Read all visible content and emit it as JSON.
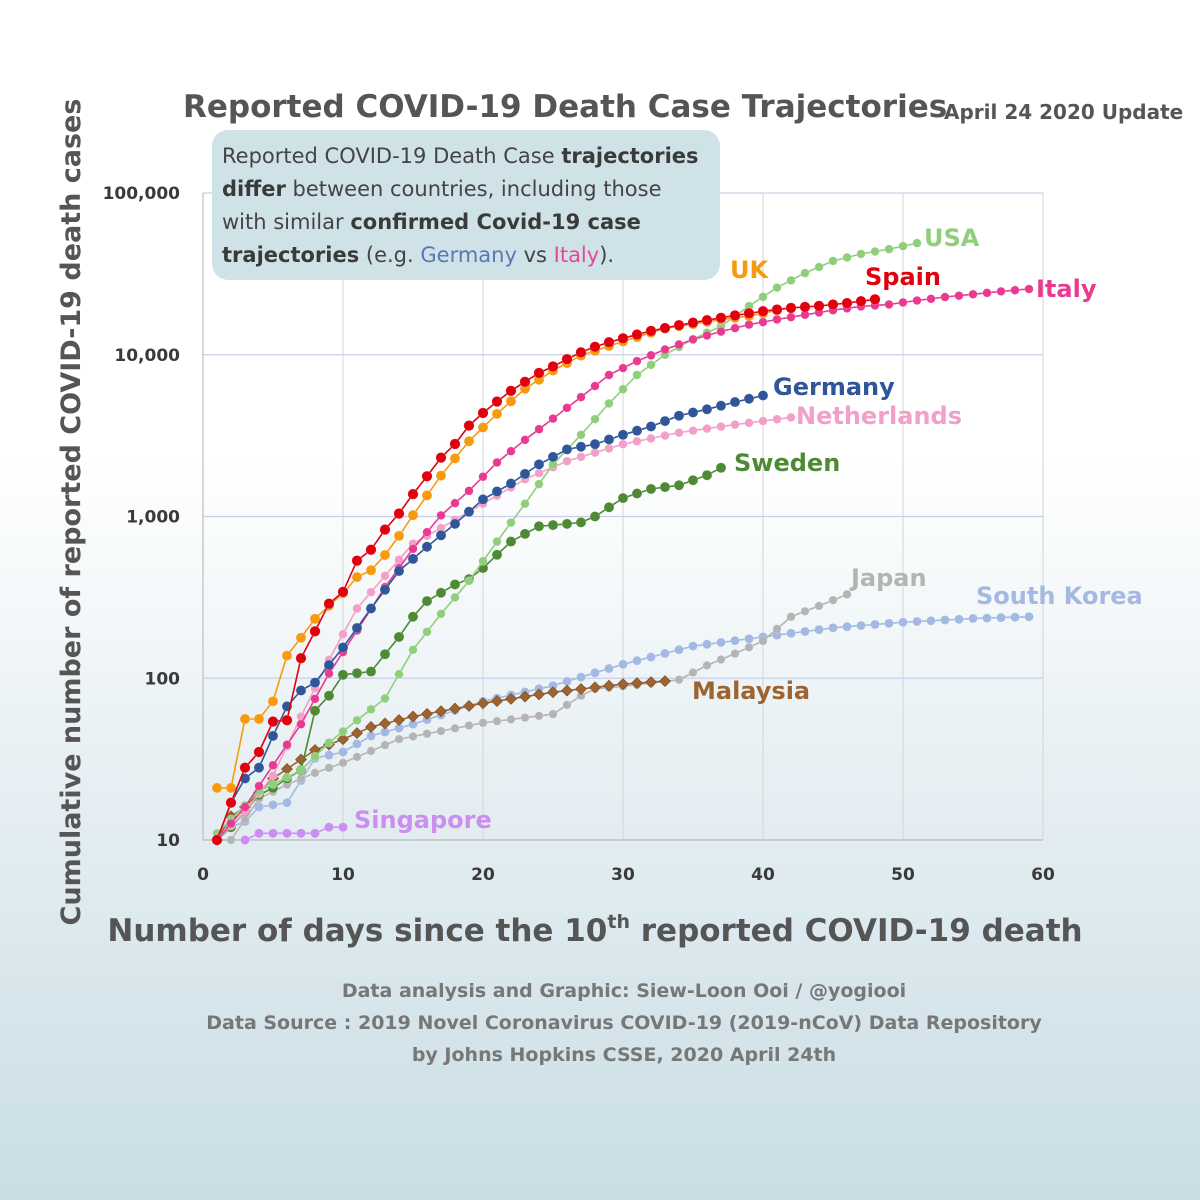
{
  "page": {
    "update_note": "April 24 2020 Update",
    "credit_line1": "Data analysis and Graphic: Siew-Loon Ooi / @yogiooi",
    "credit_line2": "Data Source : 2019 Novel Coronavirus COVID-19 (2019-nCoV) Data Repository",
    "credit_line3": "by Johns Hopkins CSSE, 2020 April 24th"
  },
  "annotation": {
    "t1": "Reported COVID-19 Death Case ",
    "t2": "trajectories",
    "t3": "differ",
    "t4": " between countries, including those with similar ",
    "t5": "confirmed Covid-19 case trajectories",
    "t6": " (e.g. ",
    "t7": "Germany",
    "t8": " vs ",
    "t9": "Italy",
    "t10": ")."
  },
  "chart_data": {
    "type": "line",
    "title": "Reported COVID-19 Death Case Trajectories",
    "xlabel_main": "Number of days since the 10",
    "xlabel_sup": "th",
    "xlabel_end": " reported COVID-19 death",
    "ylabel": "Cumulative number of reported COVID-19 death cases",
    "y_scale": "log",
    "xlim": [
      0,
      60
    ],
    "ylim": [
      10,
      100000
    ],
    "grid": true,
    "x_ticks": [
      "0",
      "10",
      "20",
      "30",
      "40",
      "50",
      "60"
    ],
    "y_ticks": [
      {
        "value": 10,
        "label": "10"
      },
      {
        "value": 100,
        "label": "100"
      },
      {
        "value": 1000,
        "label": "1,000"
      },
      {
        "value": 10000,
        "label": "10,000"
      },
      {
        "value": 100000,
        "label": "100,000"
      }
    ],
    "series": [
      {
        "name": "South Korea",
        "color": "#a3b9e3",
        "last_day": 59,
        "end_value": 240,
        "points": [
          [
            1,
            10
          ],
          [
            2,
            12
          ],
          [
            3,
            13
          ],
          [
            4,
            16
          ],
          [
            6,
            17
          ],
          [
            8,
            32
          ],
          [
            10,
            35
          ],
          [
            12,
            44
          ],
          [
            15,
            52
          ],
          [
            20,
            72
          ],
          [
            25,
            90
          ],
          [
            30,
            122
          ],
          [
            35,
            158
          ],
          [
            40,
            180
          ],
          [
            45,
            205
          ],
          [
            50,
            222
          ],
          [
            55,
            234
          ],
          [
            59,
            240
          ]
        ]
      },
      {
        "name": "Japan",
        "color": "#b4b4b4",
        "last_day": 46,
        "end_value": 330,
        "points": [
          [
            1,
            10
          ],
          [
            2,
            10
          ],
          [
            4,
            18
          ],
          [
            6,
            22
          ],
          [
            8,
            26
          ],
          [
            10,
            30
          ],
          [
            14,
            42
          ],
          [
            20,
            53
          ],
          [
            25,
            60
          ],
          [
            27,
            78
          ],
          [
            28,
            86
          ],
          [
            30,
            89
          ],
          [
            34,
            98
          ],
          [
            36,
            120
          ],
          [
            38,
            142
          ],
          [
            40,
            170
          ],
          [
            42,
            240
          ],
          [
            44,
            280
          ],
          [
            46,
            330
          ]
        ]
      },
      {
        "name": "Malaysia",
        "color": "#9d6331",
        "last_day": 33,
        "end_value": 96,
        "points": [
          [
            1,
            10
          ],
          [
            2,
            14
          ],
          [
            3,
            16
          ],
          [
            5,
            24
          ],
          [
            8,
            36
          ],
          [
            10,
            42
          ],
          [
            12,
            50
          ],
          [
            15,
            58
          ],
          [
            20,
            70
          ],
          [
            25,
            82
          ],
          [
            30,
            92
          ],
          [
            33,
            96
          ]
        ]
      },
      {
        "name": "Singapore",
        "color": "#cc8ef0",
        "last_day": 10,
        "end_value": 12,
        "points": [
          [
            3,
            10
          ],
          [
            4,
            11
          ],
          [
            8,
            11
          ],
          [
            9,
            12
          ],
          [
            10,
            12
          ]
        ]
      },
      {
        "name": "Sweden",
        "color": "#4d8a33",
        "last_day": 37,
        "end_value": 2000,
        "points": [
          [
            1,
            10
          ],
          [
            2,
            12
          ],
          [
            3,
            15
          ],
          [
            4,
            19
          ],
          [
            5,
            21
          ],
          [
            6,
            24
          ],
          [
            7,
            27
          ],
          [
            8,
            63
          ],
          [
            9,
            78
          ],
          [
            10,
            105
          ],
          [
            12,
            110
          ],
          [
            14,
            180
          ],
          [
            15,
            240
          ],
          [
            16,
            300
          ],
          [
            18,
            380
          ],
          [
            19,
            410
          ],
          [
            20,
            480
          ],
          [
            22,
            700
          ],
          [
            24,
            870
          ],
          [
            26,
            900
          ],
          [
            27,
            920
          ],
          [
            28,
            1000
          ],
          [
            30,
            1300
          ],
          [
            32,
            1480
          ],
          [
            34,
            1560
          ],
          [
            36,
            1800
          ],
          [
            37,
            2000
          ]
        ]
      },
      {
        "name": "Netherlands",
        "color": "#f2a0c8",
        "last_day": 42,
        "end_value": 4100,
        "points": [
          [
            1,
            10
          ],
          [
            3,
            15
          ],
          [
            5,
            25
          ],
          [
            7,
            58
          ],
          [
            9,
            130
          ],
          [
            11,
            270
          ],
          [
            13,
            430
          ],
          [
            15,
            680
          ],
          [
            17,
            850
          ],
          [
            20,
            1200
          ],
          [
            23,
            1700
          ],
          [
            26,
            2200
          ],
          [
            30,
            2800
          ],
          [
            34,
            3300
          ],
          [
            38,
            3700
          ],
          [
            42,
            4100
          ]
        ]
      },
      {
        "name": "USA",
        "color": "#8fcf7c",
        "last_day": 51,
        "end_value": 49000,
        "points": [
          [
            1,
            11
          ],
          [
            4,
            20
          ],
          [
            7,
            27
          ],
          [
            9,
            40
          ],
          [
            11,
            55
          ],
          [
            13,
            75
          ],
          [
            15,
            150
          ],
          [
            17,
            250
          ],
          [
            19,
            400
          ],
          [
            21,
            700
          ],
          [
            23,
            1200
          ],
          [
            25,
            2100
          ],
          [
            27,
            3200
          ],
          [
            29,
            5000
          ],
          [
            31,
            7500
          ],
          [
            33,
            10000
          ],
          [
            35,
            12500
          ],
          [
            37,
            15000
          ],
          [
            39,
            20000
          ],
          [
            41,
            26000
          ],
          [
            43,
            32000
          ],
          [
            45,
            38000
          ],
          [
            47,
            42000
          ],
          [
            49,
            45000
          ],
          [
            51,
            49000
          ]
        ]
      },
      {
        "name": "Italy",
        "color": "#e93a91",
        "last_day": 59,
        "end_value": 25500,
        "points": [
          [
            1,
            10
          ],
          [
            3,
            16
          ],
          [
            5,
            29
          ],
          [
            7,
            52
          ],
          [
            9,
            107
          ],
          [
            11,
            197
          ],
          [
            13,
            366
          ],
          [
            15,
            631
          ],
          [
            17,
            1016
          ],
          [
            19,
            1441
          ],
          [
            21,
            2158
          ],
          [
            23,
            2978
          ],
          [
            25,
            4032
          ],
          [
            27,
            5476
          ],
          [
            29,
            7503
          ],
          [
            31,
            9134
          ],
          [
            33,
            10779
          ],
          [
            35,
            12428
          ],
          [
            37,
            13915
          ],
          [
            39,
            15362
          ],
          [
            41,
            16523
          ],
          [
            43,
            17669
          ],
          [
            45,
            18849
          ],
          [
            47,
            19899
          ],
          [
            49,
            20465
          ],
          [
            51,
            21645
          ],
          [
            53,
            22745
          ],
          [
            55,
            23660
          ],
          [
            57,
            24648
          ],
          [
            59,
            25500
          ]
        ]
      },
      {
        "name": "Germany",
        "color": "#2f5698",
        "last_day": 40,
        "end_value": 5600,
        "points": [
          [
            1,
            10
          ],
          [
            2,
            17
          ],
          [
            3,
            24
          ],
          [
            4,
            28
          ],
          [
            5,
            44
          ],
          [
            6,
            67
          ],
          [
            7,
            84
          ],
          [
            8,
            94
          ],
          [
            10,
            155
          ],
          [
            12,
            270
          ],
          [
            14,
            460
          ],
          [
            16,
            650
          ],
          [
            18,
            900
          ],
          [
            20,
            1275
          ],
          [
            22,
            1600
          ],
          [
            24,
            2100
          ],
          [
            26,
            2600
          ],
          [
            28,
            2800
          ],
          [
            30,
            3200
          ],
          [
            32,
            3600
          ],
          [
            34,
            4200
          ],
          [
            36,
            4600
          ],
          [
            38,
            5100
          ],
          [
            40,
            5600
          ]
        ]
      },
      {
        "name": "UK",
        "color": "#f79a0e",
        "last_day": 41,
        "end_value": 18800,
        "points": [
          [
            1,
            21
          ],
          [
            2,
            21
          ],
          [
            3,
            56
          ],
          [
            4,
            56
          ],
          [
            5,
            72
          ],
          [
            6,
            138
          ],
          [
            7,
            178
          ],
          [
            8,
            233
          ],
          [
            9,
            281
          ],
          [
            10,
            335
          ],
          [
            11,
            422
          ],
          [
            12,
            465
          ],
          [
            13,
            578
          ],
          [
            14,
            759
          ],
          [
            15,
            1019
          ],
          [
            17,
            1789
          ],
          [
            19,
            2921
          ],
          [
            21,
            4313
          ],
          [
            23,
            6159
          ],
          [
            25,
            7978
          ],
          [
            27,
            9875
          ],
          [
            29,
            11329
          ],
          [
            31,
            12868
          ],
          [
            33,
            14576
          ],
          [
            35,
            15464
          ],
          [
            37,
            16509
          ],
          [
            39,
            17337
          ],
          [
            41,
            18800
          ]
        ]
      },
      {
        "name": "Spain",
        "color": "#e2000f",
        "last_day": 48,
        "end_value": 22000,
        "points": [
          [
            1,
            10
          ],
          [
            2,
            17
          ],
          [
            3,
            28
          ],
          [
            4,
            35
          ],
          [
            5,
            54
          ],
          [
            6,
            55
          ],
          [
            7,
            133
          ],
          [
            8,
            195
          ],
          [
            9,
            289
          ],
          [
            10,
            342
          ],
          [
            11,
            533
          ],
          [
            12,
            623
          ],
          [
            13,
            830
          ],
          [
            14,
            1043
          ],
          [
            15,
            1375
          ],
          [
            16,
            1772
          ],
          [
            17,
            2311
          ],
          [
            18,
            2808
          ],
          [
            19,
            3647
          ],
          [
            20,
            4365
          ],
          [
            21,
            5138
          ],
          [
            22,
            5982
          ],
          [
            23,
            6803
          ],
          [
            24,
            7716
          ],
          [
            25,
            8464
          ],
          [
            26,
            9387
          ],
          [
            27,
            10348
          ],
          [
            28,
            11198
          ],
          [
            29,
            11947
          ],
          [
            30,
            12641
          ],
          [
            32,
            14045
          ],
          [
            34,
            15238
          ],
          [
            36,
            16353
          ],
          [
            38,
            17489
          ],
          [
            40,
            18579
          ],
          [
            42,
            19478
          ],
          [
            44,
            20043
          ],
          [
            46,
            20852
          ],
          [
            48,
            22000
          ]
        ]
      }
    ]
  }
}
